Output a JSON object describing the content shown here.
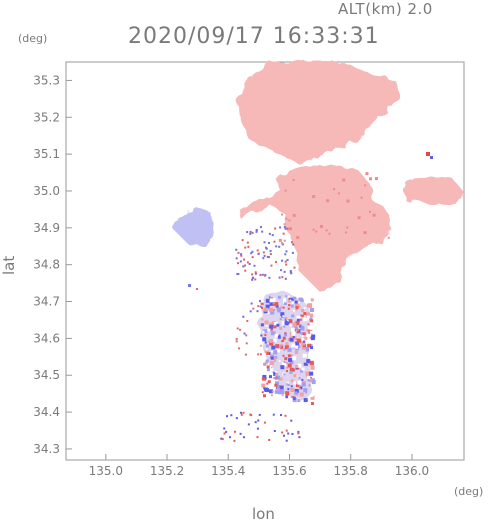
{
  "header": {
    "altitude_label": "ALT(km) 2.0",
    "timestamp": "2020/09/17 16:33:31"
  },
  "axes": {
    "x_label": "lon",
    "y_label": "lat",
    "x_unit": "(deg)",
    "y_unit": "(deg)",
    "x_ticks": [
      "135.0",
      "135.2",
      "135.4",
      "135.6",
      "135.8",
      "136.0"
    ],
    "y_ticks": [
      "34.3",
      "34.4",
      "34.5",
      "34.6",
      "34.7",
      "34.8",
      "34.9",
      "35.0",
      "35.1",
      "35.2",
      "35.3"
    ],
    "x_range": [
      134.87,
      136.17
    ],
    "y_range": [
      34.27,
      35.35
    ]
  },
  "colors": {
    "positive": "#f4a8a8",
    "negative": "#a8a8f4",
    "frame": "#999999",
    "text": "#7a7a7a"
  }
}
